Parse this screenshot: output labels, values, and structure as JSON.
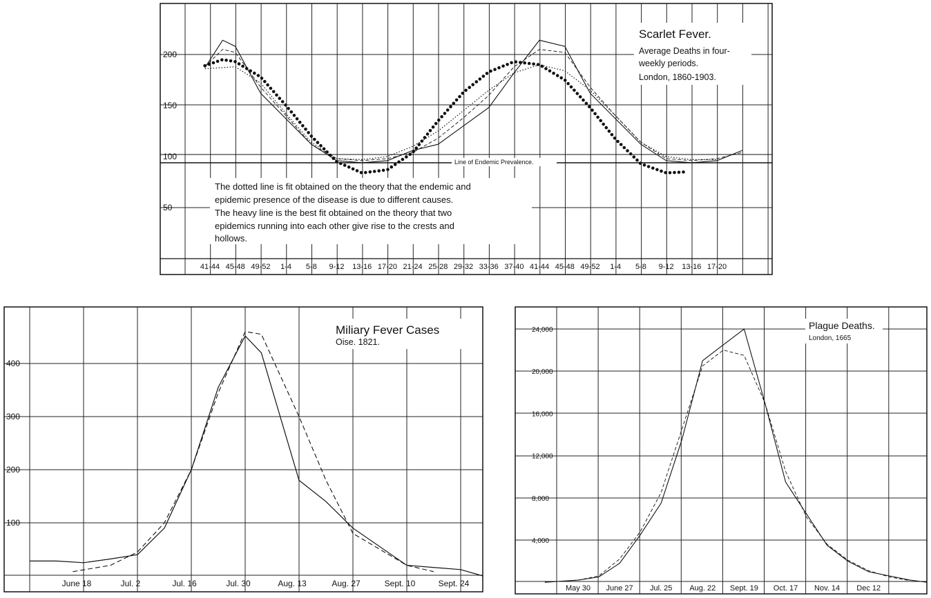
{
  "chart_data": [
    {
      "type": "line",
      "title": "Scarlet Fever.",
      "subtitle_lines": [
        "Average Deaths in four-",
        "weekly periods.",
        "London, 1860-1903."
      ],
      "categories": [
        "41-44",
        "45-48",
        "49-52",
        "1-4",
        "5-8",
        "9-12",
        "13-16",
        "17-20",
        "21-24",
        "25-28",
        "29-32",
        "33-36",
        "37-40",
        "41-44",
        "45-48",
        "49-52",
        "1-4",
        "5-8",
        "9-12",
        "13-16",
        "17-20"
      ],
      "y_ticks": [
        "200",
        "150",
        "100",
        "50"
      ],
      "ylim": [
        0,
        250
      ],
      "grid": true,
      "endemic_level": 93,
      "annotation": "Line of Endemic Prevalence.",
      "note_lines": [
        "The dotted line is fit obtained on the theory that the endemic and",
        "epidemic presence of the disease is due to different causes.",
        "The heavy line is the best fit obtained on the theory that two",
        "epidemics running into each other give rise to the crests and",
        "hollows."
      ],
      "series": [
        {
          "style": "solid-thin",
          "values": [
            [
              -0.2,
              187
            ],
            [
              0.5,
              214
            ],
            [
              1,
              208
            ],
            [
              2,
              162
            ],
            [
              3,
              137
            ],
            [
              4,
              112
            ],
            [
              5,
              96
            ],
            [
              6,
              94
            ],
            [
              7,
              96
            ],
            [
              8,
              106
            ],
            [
              9,
              112
            ],
            [
              10,
              130
            ],
            [
              11,
              148
            ],
            [
              12,
              182
            ],
            [
              13,
              214
            ],
            [
              14,
              208
            ],
            [
              15,
              162
            ],
            [
              16,
              137
            ],
            [
              17,
              112
            ],
            [
              18,
              96
            ],
            [
              19,
              94
            ],
            [
              20,
              96
            ],
            [
              21,
              106
            ]
          ]
        },
        {
          "style": "dashed",
          "values": [
            [
              -0.2,
              188
            ],
            [
              0.5,
              205
            ],
            [
              1,
              202
            ],
            [
              2,
              168
            ],
            [
              3,
              140
            ],
            [
              4,
              112
            ],
            [
              5,
              98
            ],
            [
              6,
              96
            ],
            [
              7,
              98
            ],
            [
              8,
              104
            ],
            [
              9,
              118
            ],
            [
              10,
              138
            ],
            [
              11,
              160
            ],
            [
              12,
              188
            ],
            [
              13,
              205
            ],
            [
              14,
              202
            ],
            [
              15,
              168
            ],
            [
              16,
              140
            ],
            [
              17,
              114
            ],
            [
              18,
              98
            ],
            [
              19,
              96
            ],
            [
              20,
              98
            ],
            [
              21,
              104
            ]
          ]
        },
        {
          "style": "dotted",
          "values": [
            [
              -0.2,
              186
            ],
            [
              1,
              188
            ],
            [
              2,
              172
            ],
            [
              3,
              142
            ],
            [
              4,
              114
            ],
            [
              5,
              98
            ],
            [
              6,
              97
            ],
            [
              7,
              100
            ],
            [
              8,
              110
            ],
            [
              9,
              125
            ],
            [
              10,
              145
            ],
            [
              11,
              165
            ],
            [
              12,
              182
            ],
            [
              13,
              190
            ],
            [
              14,
              184
            ],
            [
              15,
              165
            ],
            [
              16,
              140
            ],
            [
              17,
              114
            ],
            [
              18,
              100
            ],
            [
              19,
              97
            ],
            [
              20,
              97
            ]
          ]
        },
        {
          "style": "heavy-dots",
          "values": [
            [
              -0.2,
              189
            ],
            [
              0.5,
              195
            ],
            [
              1,
              193
            ],
            [
              2,
              178
            ],
            [
              3,
              150
            ],
            [
              4,
              120
            ],
            [
              5,
              95
            ],
            [
              6,
              84
            ],
            [
              7,
              87
            ],
            [
              8,
              104
            ],
            [
              9,
              135
            ],
            [
              10,
              163
            ],
            [
              11,
              183
            ],
            [
              12,
              193
            ],
            [
              13,
              190
            ],
            [
              14,
              175
            ],
            [
              15,
              148
            ],
            [
              16,
              117
            ],
            [
              17,
              93
            ],
            [
              18,
              84
            ],
            [
              18.8,
              85
            ]
          ]
        }
      ]
    },
    {
      "type": "line",
      "title": "Miliary Fever Cases",
      "subtitle": "Oise. 1821.",
      "categories": [
        "June 18",
        "Jul. 2",
        "Jul. 16",
        "Jul. 30",
        "Aug. 13",
        "Aug. 27",
        "Sept. 10",
        "Sept. 24"
      ],
      "y_ticks": [
        "400",
        "300",
        "200",
        "100"
      ],
      "ylim": [
        0,
        490
      ],
      "grid": true,
      "series": [
        {
          "style": "solid",
          "values": [
            [
              -1,
              28
            ],
            [
              -0.5,
              28
            ],
            [
              0,
              25
            ],
            [
              0.5,
              32
            ],
            [
              1,
              40
            ],
            [
              1.5,
              90
            ],
            [
              2,
              200
            ],
            [
              2.5,
              355
            ],
            [
              3,
              452
            ],
            [
              3.3,
              420
            ],
            [
              4,
              180
            ],
            [
              4.5,
              140
            ],
            [
              5,
              90
            ],
            [
              6,
              20
            ],
            [
              7,
              12
            ],
            [
              7.5,
              0
            ]
          ]
        },
        {
          "style": "dashed",
          "values": [
            [
              -0.2,
              8
            ],
            [
              0.5,
              20
            ],
            [
              1,
              45
            ],
            [
              1.5,
              100
            ],
            [
              2,
              200
            ],
            [
              2.5,
              345
            ],
            [
              3,
              460
            ],
            [
              3.3,
              455
            ],
            [
              4,
              300
            ],
            [
              4.5,
              180
            ],
            [
              5,
              80
            ],
            [
              6,
              20
            ],
            [
              6.5,
              8
            ]
          ]
        }
      ]
    },
    {
      "type": "line",
      "title": "Plague Deaths.",
      "subtitle": "London, 1665",
      "categories": [
        "May 30",
        "June 27",
        "Jul. 25",
        "Aug. 22",
        "Sept. 19",
        "Oct. 17",
        "Nov. 14",
        "Dec 12"
      ],
      "y_ticks": [
        "24,000",
        "20,000",
        "16,000",
        "12,000",
        "8,000",
        "4,000"
      ],
      "ylim": [
        0,
        25000
      ],
      "grid": true,
      "series": [
        {
          "style": "solid",
          "values": [
            [
              -0.8,
              0
            ],
            [
              0,
              200
            ],
            [
              0.5,
              500
            ],
            [
              1,
              1800
            ],
            [
              1.5,
              4500
            ],
            [
              2,
              7500
            ],
            [
              2.5,
              13500
            ],
            [
              3,
              21000
            ],
            [
              3.5,
              22500
            ],
            [
              4,
              24000
            ],
            [
              4.5,
              17000
            ],
            [
              5,
              9500
            ],
            [
              5.5,
              6500
            ],
            [
              6,
              3500
            ],
            [
              6.5,
              2000
            ],
            [
              7,
              1000
            ],
            [
              7.5,
              600
            ],
            [
              8,
              200
            ],
            [
              8.5,
              0
            ]
          ]
        },
        {
          "style": "dashed",
          "values": [
            [
              -0.8,
              0
            ],
            [
              0,
              200
            ],
            [
              0.5,
              600
            ],
            [
              1,
              2200
            ],
            [
              1.5,
              4800
            ],
            [
              2,
              8500
            ],
            [
              2.5,
              14500
            ],
            [
              3,
              20500
            ],
            [
              3.5,
              22000
            ],
            [
              4,
              21500
            ],
            [
              4.5,
              17000
            ],
            [
              5,
              10500
            ],
            [
              5.5,
              6200
            ],
            [
              6,
              3600
            ],
            [
              6.5,
              2100
            ],
            [
              7,
              1100
            ],
            [
              7.5,
              500
            ],
            [
              8,
              150
            ]
          ]
        }
      ]
    }
  ]
}
